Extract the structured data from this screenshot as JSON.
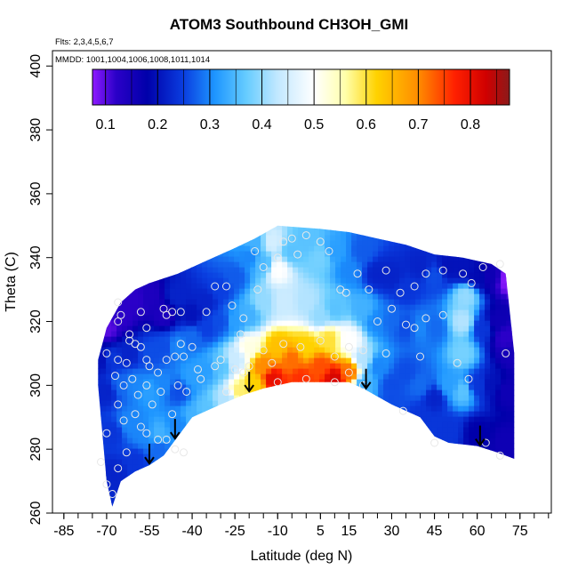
{
  "chart_data": {
    "type": "heatmap",
    "title": "ATOM3 Southbound CH3OH_GMI",
    "flights_note": "Flts: 2,3,4,5,6,7",
    "mmdd_note": "MMDD: 1001,1004,1006,1008,1011,1014",
    "xlabel": "Latitude (deg N)",
    "ylabel": "Theta (C)",
    "xlim": [
      -85,
      85
    ],
    "ylim": [
      260,
      405
    ],
    "x_ticks": [
      -85,
      -70,
      -55,
      -40,
      -25,
      -10,
      5,
      15,
      30,
      45,
      60,
      75
    ],
    "x_tick_labels": [
      "-85",
      "-70",
      "-55",
      "-40",
      "-25",
      "-10",
      "5",
      "15",
      "30",
      "45",
      "60",
      "75"
    ],
    "x_minor_step": 5,
    "y_ticks": [
      260,
      280,
      300,
      320,
      340,
      360,
      380,
      400
    ],
    "y_tick_labels": [
      "260",
      "280",
      "300",
      "320",
      "340",
      "360",
      "380",
      "400"
    ],
    "colorbar": {
      "min": 0.075,
      "max": 0.875,
      "ticks": [
        0.1,
        0.2,
        0.3,
        0.4,
        0.5,
        0.6,
        0.7,
        0.8
      ],
      "tick_labels": [
        "0.1",
        "0.2",
        "0.3",
        "0.4",
        "0.5",
        "0.6",
        "0.7",
        "0.8"
      ],
      "stops": [
        {
          "v": 0.075,
          "c": "#8f1aff"
        },
        {
          "v": 0.12,
          "c": "#2b00c8"
        },
        {
          "v": 0.18,
          "c": "#0000aa"
        },
        {
          "v": 0.25,
          "c": "#0a3ee0"
        },
        {
          "v": 0.31,
          "c": "#1e96ff"
        },
        {
          "v": 0.37,
          "c": "#66ccff"
        },
        {
          "v": 0.43,
          "c": "#c2e8ff"
        },
        {
          "v": 0.5,
          "c": "#ffffff"
        },
        {
          "v": 0.56,
          "c": "#ffffaa"
        },
        {
          "v": 0.62,
          "c": "#ffd200"
        },
        {
          "v": 0.7,
          "c": "#ff8c00"
        },
        {
          "v": 0.77,
          "c": "#ff2000"
        },
        {
          "v": 0.83,
          "c": "#d00000"
        },
        {
          "v": 0.875,
          "c": "#8b1a1a"
        }
      ]
    },
    "domain_top": [
      [
        -73,
        308
      ],
      [
        -70,
        318
      ],
      [
        -65,
        326
      ],
      [
        -60,
        330
      ],
      [
        -55,
        332
      ],
      [
        -45,
        335
      ],
      [
        -35,
        339
      ],
      [
        -25,
        343
      ],
      [
        -18,
        346
      ],
      [
        -10,
        350
      ],
      [
        5,
        349
      ],
      [
        15,
        348
      ],
      [
        25,
        346
      ],
      [
        35,
        344
      ],
      [
        45,
        341
      ],
      [
        55,
        340
      ],
      [
        65,
        338
      ],
      [
        70,
        335
      ],
      [
        73,
        310
      ]
    ],
    "domain_bottom": [
      [
        73,
        277
      ],
      [
        67,
        279
      ],
      [
        60,
        281
      ],
      [
        50,
        282
      ],
      [
        45,
        284
      ],
      [
        40,
        290
      ],
      [
        30,
        294
      ],
      [
        20,
        299
      ],
      [
        15,
        301
      ],
      [
        5,
        301
      ],
      [
        -5,
        301
      ],
      [
        -15,
        299
      ],
      [
        -22,
        297
      ],
      [
        -30,
        294
      ],
      [
        -40,
        290
      ],
      [
        -45,
        284
      ],
      [
        -50,
        278
      ],
      [
        -55,
        275
      ],
      [
        -60,
        273
      ],
      [
        -65,
        270
      ],
      [
        -68,
        262
      ],
      [
        -70,
        270
      ],
      [
        -73,
        300
      ]
    ],
    "field": [
      {
        "x": -70,
        "y": 318,
        "v": 0.1
      },
      {
        "x": -65,
        "y": 322,
        "v": 0.12
      },
      {
        "x": -60,
        "y": 327,
        "v": 0.12
      },
      {
        "x": -55,
        "y": 328,
        "v": 0.14
      },
      {
        "x": -50,
        "y": 322,
        "v": 0.14
      },
      {
        "x": -45,
        "y": 328,
        "v": 0.22
      },
      {
        "x": -40,
        "y": 322,
        "v": 0.2
      },
      {
        "x": -35,
        "y": 326,
        "v": 0.22
      },
      {
        "x": -30,
        "y": 330,
        "v": 0.25
      },
      {
        "x": -25,
        "y": 334,
        "v": 0.27
      },
      {
        "x": -20,
        "y": 340,
        "v": 0.3
      },
      {
        "x": -18,
        "y": 345,
        "v": 0.34
      },
      {
        "x": -15,
        "y": 338,
        "v": 0.35
      },
      {
        "x": -12,
        "y": 345,
        "v": 0.45
      },
      {
        "x": -10,
        "y": 336,
        "v": 0.5
      },
      {
        "x": -5,
        "y": 342,
        "v": 0.36
      },
      {
        "x": 0,
        "y": 345,
        "v": 0.36
      },
      {
        "x": 5,
        "y": 340,
        "v": 0.38
      },
      {
        "x": 10,
        "y": 342,
        "v": 0.32
      },
      {
        "x": 15,
        "y": 336,
        "v": 0.3
      },
      {
        "x": 20,
        "y": 342,
        "v": 0.27
      },
      {
        "x": 25,
        "y": 335,
        "v": 0.22
      },
      {
        "x": 30,
        "y": 334,
        "v": 0.22
      },
      {
        "x": 35,
        "y": 330,
        "v": 0.24
      },
      {
        "x": 40,
        "y": 337,
        "v": 0.22
      },
      {
        "x": 45,
        "y": 334,
        "v": 0.26
      },
      {
        "x": 50,
        "y": 337,
        "v": 0.2
      },
      {
        "x": 55,
        "y": 336,
        "v": 0.2
      },
      {
        "x": 60,
        "y": 334,
        "v": 0.19
      },
      {
        "x": 65,
        "y": 334,
        "v": 0.16
      },
      {
        "x": 70,
        "y": 333,
        "v": 0.08
      },
      {
        "x": 72,
        "y": 310,
        "v": 0.15
      },
      {
        "x": -72,
        "y": 308,
        "v": 0.2
      },
      {
        "x": -68,
        "y": 308,
        "v": 0.24
      },
      {
        "x": -62,
        "y": 310,
        "v": 0.22
      },
      {
        "x": -55,
        "y": 310,
        "v": 0.26
      },
      {
        "x": -50,
        "y": 312,
        "v": 0.26
      },
      {
        "x": -45,
        "y": 312,
        "v": 0.3
      },
      {
        "x": -40,
        "y": 315,
        "v": 0.28
      },
      {
        "x": -35,
        "y": 318,
        "v": 0.25
      },
      {
        "x": -30,
        "y": 320,
        "v": 0.26
      },
      {
        "x": -25,
        "y": 320,
        "v": 0.32
      },
      {
        "x": -20,
        "y": 322,
        "v": 0.34
      },
      {
        "x": -15,
        "y": 326,
        "v": 0.4
      },
      {
        "x": -8,
        "y": 326,
        "v": 0.44
      },
      {
        "x": 0,
        "y": 326,
        "v": 0.42
      },
      {
        "x": 5,
        "y": 322,
        "v": 0.4
      },
      {
        "x": 10,
        "y": 324,
        "v": 0.36
      },
      {
        "x": 20,
        "y": 324,
        "v": 0.34
      },
      {
        "x": 25,
        "y": 320,
        "v": 0.3
      },
      {
        "x": 30,
        "y": 320,
        "v": 0.28
      },
      {
        "x": 35,
        "y": 318,
        "v": 0.26
      },
      {
        "x": 40,
        "y": 318,
        "v": 0.3
      },
      {
        "x": 45,
        "y": 318,
        "v": 0.28
      },
      {
        "x": 55,
        "y": 320,
        "v": 0.42
      },
      {
        "x": 56,
        "y": 328,
        "v": 0.4
      },
      {
        "x": 55,
        "y": 310,
        "v": 0.38
      },
      {
        "x": 62,
        "y": 318,
        "v": 0.24
      },
      {
        "x": 67,
        "y": 320,
        "v": 0.16
      },
      {
        "x": 70,
        "y": 315,
        "v": 0.12
      },
      {
        "x": -70,
        "y": 298,
        "v": 0.22
      },
      {
        "x": -65,
        "y": 300,
        "v": 0.28
      },
      {
        "x": -60,
        "y": 300,
        "v": 0.3
      },
      {
        "x": -55,
        "y": 298,
        "v": 0.32
      },
      {
        "x": -50,
        "y": 300,
        "v": 0.3
      },
      {
        "x": -45,
        "y": 298,
        "v": 0.26
      },
      {
        "x": -40,
        "y": 303,
        "v": 0.32
      },
      {
        "x": -35,
        "y": 305,
        "v": 0.32
      },
      {
        "x": -30,
        "y": 306,
        "v": 0.36
      },
      {
        "x": -25,
        "y": 308,
        "v": 0.44
      },
      {
        "x": -20,
        "y": 312,
        "v": 0.52
      },
      {
        "x": -18,
        "y": 300,
        "v": 0.62
      },
      {
        "x": -15,
        "y": 306,
        "v": 0.7
      },
      {
        "x": -12,
        "y": 302,
        "v": 0.8
      },
      {
        "x": -10,
        "y": 312,
        "v": 0.64
      },
      {
        "x": -5,
        "y": 308,
        "v": 0.72
      },
      {
        "x": -2,
        "y": 302,
        "v": 0.76
      },
      {
        "x": 0,
        "y": 312,
        "v": 0.62
      },
      {
        "x": 5,
        "y": 306,
        "v": 0.74
      },
      {
        "x": 8,
        "y": 314,
        "v": 0.6
      },
      {
        "x": 10,
        "y": 302,
        "v": 0.82
      },
      {
        "x": 15,
        "y": 304,
        "v": 0.72
      },
      {
        "x": 15,
        "y": 314,
        "v": 0.5
      },
      {
        "x": 20,
        "y": 308,
        "v": 0.42
      },
      {
        "x": 25,
        "y": 306,
        "v": 0.3
      },
      {
        "x": 30,
        "y": 300,
        "v": 0.26
      },
      {
        "x": 35,
        "y": 304,
        "v": 0.26
      },
      {
        "x": 40,
        "y": 300,
        "v": 0.28
      },
      {
        "x": 45,
        "y": 296,
        "v": 0.22
      },
      {
        "x": 50,
        "y": 300,
        "v": 0.32
      },
      {
        "x": 55,
        "y": 298,
        "v": 0.36
      },
      {
        "x": 60,
        "y": 300,
        "v": 0.24
      },
      {
        "x": 65,
        "y": 300,
        "v": 0.2
      },
      {
        "x": 70,
        "y": 298,
        "v": 0.16
      },
      {
        "x": -68,
        "y": 285,
        "v": 0.24
      },
      {
        "x": -62,
        "y": 288,
        "v": 0.3
      },
      {
        "x": -57,
        "y": 285,
        "v": 0.3
      },
      {
        "x": -52,
        "y": 285,
        "v": 0.34
      },
      {
        "x": -45,
        "y": 288,
        "v": 0.3
      },
      {
        "x": -40,
        "y": 290,
        "v": 0.34
      },
      {
        "x": -35,
        "y": 292,
        "v": 0.36
      },
      {
        "x": -28,
        "y": 295,
        "v": 0.42
      },
      {
        "x": -23,
        "y": 298,
        "v": 0.58
      },
      {
        "x": 20,
        "y": 300,
        "v": 0.34
      },
      {
        "x": 30,
        "y": 294,
        "v": 0.26
      },
      {
        "x": 40,
        "y": 290,
        "v": 0.24
      },
      {
        "x": 50,
        "y": 286,
        "v": 0.24
      },
      {
        "x": 60,
        "y": 285,
        "v": 0.18
      },
      {
        "x": 70,
        "y": 282,
        "v": 0.16
      },
      {
        "x": -67,
        "y": 272,
        "v": 0.22
      },
      {
        "x": -60,
        "y": 276,
        "v": 0.24
      },
      {
        "x": -52,
        "y": 280,
        "v": 0.28
      }
    ],
    "samples": [
      [
        -66,
        326
      ],
      [
        -65,
        322
      ],
      [
        -62,
        316
      ],
      [
        -66,
        320
      ],
      [
        -58,
        323
      ],
      [
        -56,
        318
      ],
      [
        -50,
        324
      ],
      [
        -49,
        322
      ],
      [
        -47,
        323
      ],
      [
        -44,
        323
      ],
      [
        -40,
        312
      ],
      [
        -35,
        323
      ],
      [
        -32,
        331
      ],
      [
        -28,
        331
      ],
      [
        -26,
        325
      ],
      [
        -23,
        316
      ],
      [
        -22,
        321
      ],
      [
        -17,
        330
      ],
      [
        -18,
        342
      ],
      [
        -15,
        337
      ],
      [
        -10,
        340
      ],
      [
        -8,
        345
      ],
      [
        -5,
        346
      ],
      [
        -3,
        341
      ],
      [
        0,
        347
      ],
      [
        5,
        345
      ],
      [
        8,
        342
      ],
      [
        12,
        330
      ],
      [
        14,
        329
      ],
      [
        18,
        335
      ],
      [
        22,
        330
      ],
      [
        28,
        336
      ],
      [
        33,
        329
      ],
      [
        38,
        331
      ],
      [
        42,
        335
      ],
      [
        48,
        336
      ],
      [
        55,
        335
      ],
      [
        58,
        332
      ],
      [
        62,
        337
      ],
      [
        68,
        338
      ],
      [
        -70,
        310
      ],
      [
        -66,
        308
      ],
      [
        -63,
        307
      ],
      [
        -62,
        314
      ],
      [
        -60,
        313
      ],
      [
        -58,
        312
      ],
      [
        -56,
        308
      ],
      [
        -55,
        306
      ],
      [
        -52,
        304
      ],
      [
        -49,
        308
      ],
      [
        -46,
        309
      ],
      [
        -44,
        313
      ],
      [
        -43,
        309
      ],
      [
        -38,
        305
      ],
      [
        -30,
        308
      ],
      [
        -25,
        305
      ],
      [
        -20,
        306
      ],
      [
        -15,
        311
      ],
      [
        -12,
        307
      ],
      [
        -8,
        313
      ],
      [
        -2,
        312
      ],
      [
        5,
        314
      ],
      [
        10,
        309
      ],
      [
        15,
        312
      ],
      [
        20,
        311
      ],
      [
        25,
        320
      ],
      [
        28,
        310
      ],
      [
        30,
        324
      ],
      [
        35,
        319
      ],
      [
        38,
        318
      ],
      [
        40,
        309
      ],
      [
        42,
        321
      ],
      [
        48,
        322
      ],
      [
        53,
        307
      ],
      [
        57,
        302
      ],
      [
        70,
        310
      ],
      [
        -67,
        303
      ],
      [
        -64,
        300
      ],
      [
        -61,
        302
      ],
      [
        -59,
        297
      ],
      [
        -56,
        300
      ],
      [
        -54,
        294
      ],
      [
        -51,
        298
      ],
      [
        -47,
        291
      ],
      [
        -45,
        300
      ],
      [
        -42,
        298
      ],
      [
        -37,
        302
      ],
      [
        -32,
        306
      ],
      [
        -28,
        298
      ],
      [
        -22,
        304
      ],
      [
        -10,
        301
      ],
      [
        0,
        302
      ],
      [
        10,
        301
      ],
      [
        15,
        304
      ],
      [
        20,
        300
      ],
      [
        34,
        292
      ],
      [
        45,
        282
      ],
      [
        63,
        282
      ],
      [
        68,
        278
      ],
      [
        -66,
        294
      ],
      [
        -64,
        289
      ],
      [
        -60,
        291
      ],
      [
        -58,
        287
      ],
      [
        -56,
        285
      ],
      [
        -52,
        283
      ],
      [
        -49,
        283
      ],
      [
        -46,
        280
      ],
      [
        -43,
        279
      ],
      [
        -63,
        279
      ],
      [
        -66,
        274
      ],
      [
        -68,
        266
      ],
      [
        -70,
        269
      ],
      [
        -72,
        276
      ],
      [
        -70,
        285
      ]
    ],
    "arrows": [
      -55,
      -46,
      -20,
      21,
      61
    ]
  }
}
